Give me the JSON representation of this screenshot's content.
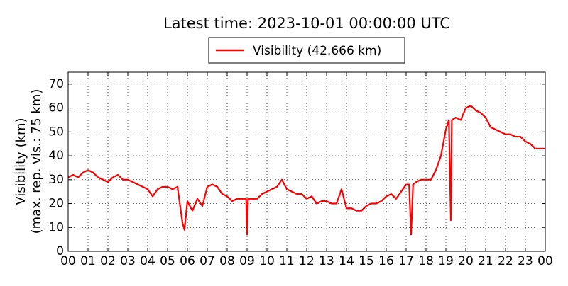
{
  "chart_data": {
    "type": "line",
    "title": "Latest time: 2023-10-01 00:00:00 UTC",
    "ylabel": [
      "Visibility (km)",
      "(max. rep. vis.: 75 km)"
    ],
    "xlim": [
      0,
      24
    ],
    "ylim": [
      0,
      75
    ],
    "xticks": [
      {
        "value": 0,
        "label": "00"
      },
      {
        "value": 1,
        "label": "01"
      },
      {
        "value": 2,
        "label": "02"
      },
      {
        "value": 3,
        "label": "03"
      },
      {
        "value": 4,
        "label": "04"
      },
      {
        "value": 5,
        "label": "05"
      },
      {
        "value": 6,
        "label": "06"
      },
      {
        "value": 7,
        "label": "07"
      },
      {
        "value": 8,
        "label": "08"
      },
      {
        "value": 9,
        "label": "09"
      },
      {
        "value": 10,
        "label": "10"
      },
      {
        "value": 11,
        "label": "11"
      },
      {
        "value": 12,
        "label": "12"
      },
      {
        "value": 13,
        "label": "13"
      },
      {
        "value": 14,
        "label": "14"
      },
      {
        "value": 15,
        "label": "15"
      },
      {
        "value": 16,
        "label": "16"
      },
      {
        "value": 17,
        "label": "17"
      },
      {
        "value": 18,
        "label": "18"
      },
      {
        "value": 19,
        "label": "19"
      },
      {
        "value": 20,
        "label": "20"
      },
      {
        "value": 21,
        "label": "21"
      },
      {
        "value": 22,
        "label": "22"
      },
      {
        "value": 23,
        "label": "23"
      },
      {
        "value": 24,
        "label": "00"
      }
    ],
    "yticks": [
      0,
      10,
      20,
      30,
      40,
      50,
      60,
      70
    ],
    "grid": true,
    "x": [
      0,
      0.25,
      0.5,
      0.75,
      1,
      1.25,
      1.5,
      1.75,
      2,
      2.25,
      2.5,
      2.75,
      3,
      3.25,
      3.5,
      3.75,
      4,
      4.25,
      4.5,
      4.75,
      5,
      5.25,
      5.5,
      5.75,
      5.85,
      6,
      6.25,
      6.5,
      6.75,
      7,
      7.25,
      7.5,
      7.75,
      8,
      8.25,
      8.5,
      8.75,
      8.95,
      9,
      9.05,
      9.25,
      9.5,
      9.75,
      10,
      10.25,
      10.5,
      10.75,
      11,
      11.25,
      11.5,
      11.75,
      12,
      12.25,
      12.5,
      12.75,
      13,
      13.25,
      13.5,
      13.75,
      14,
      14.25,
      14.5,
      14.75,
      15,
      15.25,
      15.5,
      15.75,
      16,
      16.25,
      16.5,
      16.75,
      17,
      17.15,
      17.25,
      17.35,
      17.5,
      17.75,
      18,
      18.25,
      18.5,
      18.75,
      19,
      19.15,
      19.25,
      19.3,
      19.5,
      19.75,
      20,
      20.25,
      20.5,
      20.75,
      21,
      21.25,
      21.5,
      21.75,
      22,
      22.25,
      22.5,
      22.75,
      23,
      23.25,
      23.5,
      23.75,
      24
    ],
    "series": [
      {
        "name": "Visibility (42.666 km)",
        "color": "#ff0000",
        "values": [
          31,
          32,
          31,
          33,
          34,
          33,
          31,
          30,
          29,
          31,
          32,
          30,
          30,
          29,
          28,
          27,
          26,
          23,
          26,
          27,
          27,
          26,
          27,
          12,
          9,
          21,
          17,
          22,
          19,
          27,
          28,
          27,
          24,
          23,
          21,
          22,
          22,
          22,
          7,
          22,
          22,
          22,
          24,
          25,
          26,
          27,
          30,
          26,
          25,
          24,
          24,
          22,
          23,
          20,
          21,
          21,
          20,
          20,
          26,
          18,
          18,
          17,
          17,
          19,
          20,
          20,
          21,
          23,
          24,
          22,
          25,
          28,
          28,
          7,
          28,
          29,
          30,
          30,
          30,
          34,
          40,
          51,
          55,
          13,
          55,
          56,
          55,
          60,
          61,
          59,
          58,
          56,
          52,
          51,
          50,
          49,
          49,
          48,
          48,
          46,
          45,
          43,
          43,
          43
        ]
      }
    ]
  }
}
